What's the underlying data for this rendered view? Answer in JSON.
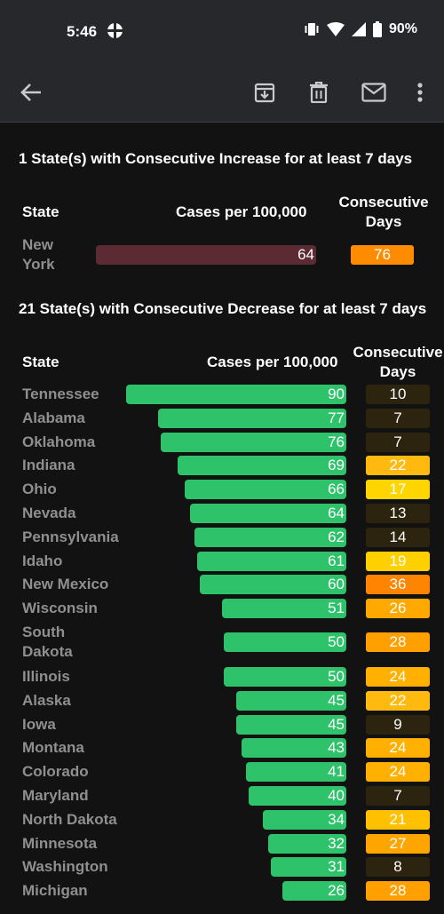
{
  "status_bar": {
    "time": "5:46",
    "battery_percent": "90%",
    "icons": [
      "basketball-icon",
      "vibrate-icon",
      "wifi-icon",
      "cell-signal-icon",
      "battery-icon"
    ]
  },
  "app_bar": {
    "icons": [
      "back-arrow-icon",
      "archive-icon",
      "delete-icon",
      "mail-icon",
      "more-vert-icon"
    ]
  },
  "increase_section": {
    "title": "1 State(s) with Consecutive Increase for at least 7 days",
    "header_state": "State",
    "header_cases": "Cases per 100,000",
    "header_days_line1": "Consecutive",
    "header_days_line2": "Days",
    "rows": [
      {
        "state_line1": "New",
        "state_line2": "York",
        "cases": "64",
        "days": "76",
        "badge_color": "#ff8c00"
      }
    ],
    "bar_color": "#5c2a33"
  },
  "decrease_section": {
    "title": "21 State(s) with Consecutive Decrease for at least 7 days",
    "header_state": "State",
    "header_cases": "Cases per 100,000",
    "header_days_line1": "Consecutive",
    "header_days_line2": "Days",
    "bar_color": "#2ec26a",
    "rows": [
      {
        "state_line1": "Tennessee",
        "state_line2": "",
        "cases": "90",
        "days": "10",
        "badge_color": "#2d2410"
      },
      {
        "state_line1": "Alabama",
        "state_line2": "",
        "cases": "77",
        "days": "7",
        "badge_color": "#2d2410"
      },
      {
        "state_line1": "Oklahoma",
        "state_line2": "",
        "cases": "76",
        "days": "7",
        "badge_color": "#2d2410"
      },
      {
        "state_line1": "Indiana",
        "state_line2": "",
        "cases": "69",
        "days": "22",
        "badge_color": "#ffb90f"
      },
      {
        "state_line1": "Ohio",
        "state_line2": "",
        "cases": "66",
        "days": "17",
        "badge_color": "#ffd500"
      },
      {
        "state_line1": "Nevada",
        "state_line2": "",
        "cases": "64",
        "days": "13",
        "badge_color": "#2d2410"
      },
      {
        "state_line1": "Pennsylvania",
        "state_line2": "",
        "cases": "62",
        "days": "14",
        "badge_color": "#2d2410"
      },
      {
        "state_line1": "Idaho",
        "state_line2": "",
        "cases": "61",
        "days": "19",
        "badge_color": "#ffd000"
      },
      {
        "state_line1": "New Mexico",
        "state_line2": "",
        "cases": "60",
        "days": "36",
        "badge_color": "#ff8500"
      },
      {
        "state_line1": "Wisconsin",
        "state_line2": "",
        "cases": "51",
        "days": "26",
        "badge_color": "#ffa800"
      },
      {
        "state_line1": "South",
        "state_line2": "Dakota",
        "cases": "50",
        "days": "28",
        "badge_color": "#ffa000"
      },
      {
        "state_line1": "Illinois",
        "state_line2": "",
        "cases": "50",
        "days": "24",
        "badge_color": "#ffb000"
      },
      {
        "state_line1": "Alaska",
        "state_line2": "",
        "cases": "45",
        "days": "22",
        "badge_color": "#ffb90f"
      },
      {
        "state_line1": "Iowa",
        "state_line2": "",
        "cases": "45",
        "days": "9",
        "badge_color": "#2d2410"
      },
      {
        "state_line1": "Montana",
        "state_line2": "",
        "cases": "43",
        "days": "24",
        "badge_color": "#ffb000"
      },
      {
        "state_line1": "Colorado",
        "state_line2": "",
        "cases": "41",
        "days": "24",
        "badge_color": "#ffb000"
      },
      {
        "state_line1": "Maryland",
        "state_line2": "",
        "cases": "40",
        "days": "7",
        "badge_color": "#2d2410"
      },
      {
        "state_line1": "North Dakota",
        "state_line2": "",
        "cases": "34",
        "days": "21",
        "badge_color": "#ffc000"
      },
      {
        "state_line1": "Minnesota",
        "state_line2": "",
        "cases": "32",
        "days": "27",
        "badge_color": "#ffa500"
      },
      {
        "state_line1": "Washington",
        "state_line2": "",
        "cases": "31",
        "days": "8",
        "badge_color": "#2d2410"
      },
      {
        "state_line1": "Michigan",
        "state_line2": "",
        "cases": "26",
        "days": "28",
        "badge_color": "#ffa000"
      }
    ]
  }
}
